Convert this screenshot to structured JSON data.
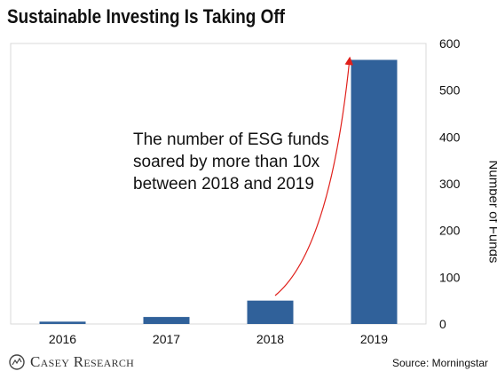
{
  "chart_data": {
    "type": "bar",
    "title": "Sustainable Investing Is Taking Off",
    "categories": [
      "2016",
      "2017",
      "2018",
      "2019"
    ],
    "values": [
      5,
      15,
      50,
      565
    ],
    "ylabel": "Number of Funds",
    "xlabel": "",
    "ylim": [
      0,
      600
    ],
    "yticks": [
      0,
      100,
      200,
      300,
      400,
      500,
      600
    ],
    "y_axis_side": "right",
    "grid": false,
    "bar_color": "#30619a",
    "annotation": {
      "lines": [
        "The number of ESG funds",
        "soared by more than 10x",
        "between 2018 and 2019"
      ],
      "arrow_color": "#e0201b"
    }
  },
  "branding": {
    "logo_text": "Casey Research",
    "source": "Source: Morningstar"
  }
}
